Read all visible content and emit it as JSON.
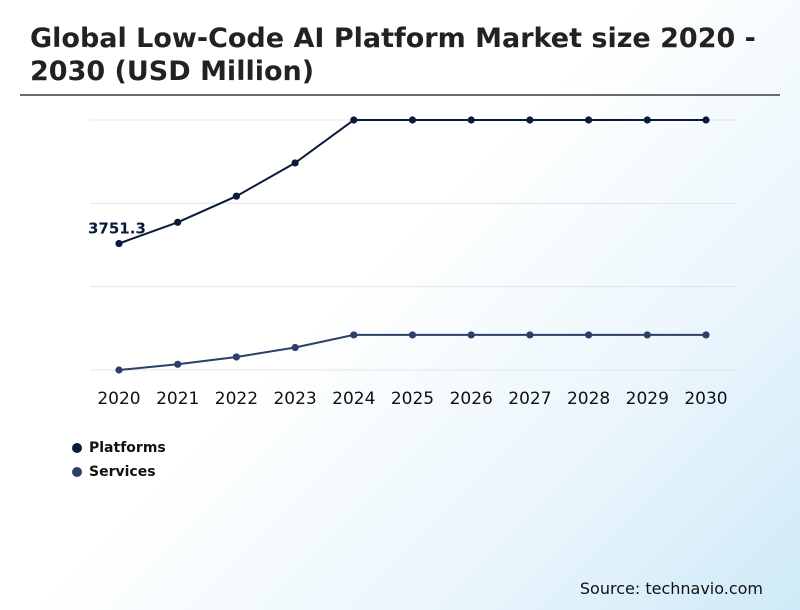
{
  "chart_data": {
    "type": "line",
    "title": "Global Low-Code AI Platform Market size 2020 - 2030 (USD Million)",
    "categories": [
      "2020",
      "2021",
      "2022",
      "2023",
      "2024",
      "2025",
      "2026",
      "2027",
      "2028",
      "2029",
      "2030"
    ],
    "series": [
      {
        "name": "Platforms",
        "color": "#0b1a3a",
        "values": [
          3751.3,
          4071.2,
          4464.8,
          4965.3,
          5612.1,
          5612.1,
          5612.1,
          5612.1,
          5612.1,
          5612.1,
          5612.1
        ]
      },
      {
        "name": "Services",
        "color": "#2c3e6b",
        "values": [
          1846.4,
          1931.8,
          2042.5,
          2184.9,
          2374.6,
          2374.6,
          2374.6,
          2374.6,
          2374.6,
          2374.6,
          2374.6
        ]
      }
    ],
    "data_labels": [
      {
        "series": 0,
        "index": 0,
        "text": "3751.3"
      }
    ],
    "ylim": [
      1846.4,
      5612.1
    ],
    "grid": true,
    "legend_position": "bottom-left",
    "xlabel": "",
    "ylabel": ""
  },
  "source": "Source: technavio.com"
}
